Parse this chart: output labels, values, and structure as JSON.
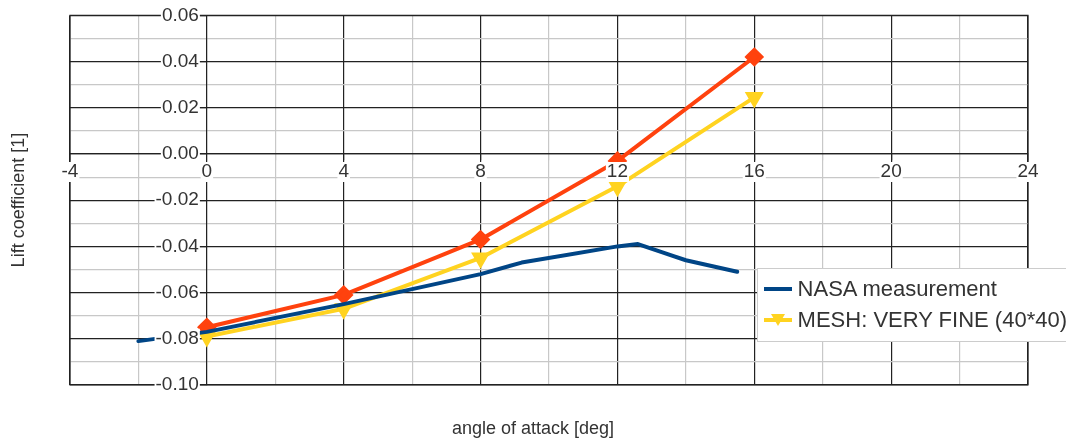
{
  "chart_data": {
    "type": "line",
    "xlabel": "angle of attack [deg]",
    "ylabel": "Lift coefficient [1]",
    "xlim": [
      -4,
      24
    ],
    "xticks": [
      -4,
      {
        "value": -2,
        "label": null
      },
      0,
      {
        "value": 2,
        "label": null
      },
      4,
      {
        "value": 6,
        "label": null
      },
      8,
      {
        "value": 10,
        "label": null
      },
      12,
      {
        "value": 14,
        "label": null
      },
      16,
      {
        "value": 18,
        "label": null
      },
      20,
      {
        "value": 22,
        "label": null
      },
      24
    ],
    "ylim": [
      -0.1,
      0.06
    ],
    "yticks": [
      {
        "value": -0.1,
        "label": "-0.10"
      },
      {
        "value": -0.09,
        "label": null
      },
      {
        "value": -0.08,
        "label": "-0.08"
      },
      {
        "value": -0.07,
        "label": null
      },
      {
        "value": -0.06,
        "label": "-0.06"
      },
      {
        "value": -0.05,
        "label": null
      },
      {
        "value": -0.04,
        "label": "-0.04"
      },
      {
        "value": -0.03,
        "label": null
      },
      {
        "value": -0.02,
        "label": "-0.02"
      },
      {
        "value": -0.01,
        "label": null
      },
      {
        "value": 0,
        "label": "0.00"
      },
      {
        "value": 0.01,
        "label": null
      },
      {
        "value": 0.02,
        "label": "0.02"
      },
      {
        "value": 0.03,
        "label": null
      },
      {
        "value": 0.04,
        "label": "0.04"
      },
      {
        "value": 0.05,
        "label": null
      },
      {
        "value": 0.06,
        "label": "0.06"
      }
    ],
    "grid": true,
    "legend": "bottom right",
    "line_style": "solid",
    "series": [
      {
        "name": "NASA measurement",
        "color": "#004586",
        "marker": "none",
        "x": [
          -2,
          0,
          4,
          8,
          9.2,
          12,
          12.6,
          14,
          15.5
        ],
        "values": [
          -0.081,
          -0.077,
          -0.065,
          -0.052,
          -0.047,
          -0.04,
          -0.039,
          -0.046,
          -0.051
        ]
      },
      {
        "name": "MESH: VERY FINE (40*40)",
        "color": "#ffd320",
        "marker": "triangle",
        "x": [
          0,
          4,
          8,
          12,
          16
        ],
        "values": [
          -0.079,
          -0.067,
          -0.045,
          -0.014,
          0.0245
        ]
      },
      {
        "color": "#ff420e",
        "marker": "diamond",
        "x": [
          0,
          4,
          8,
          12,
          16
        ],
        "values": [
          -0.075,
          -0.061,
          -0.037,
          -0.003,
          0.042
        ]
      }
    ]
  }
}
